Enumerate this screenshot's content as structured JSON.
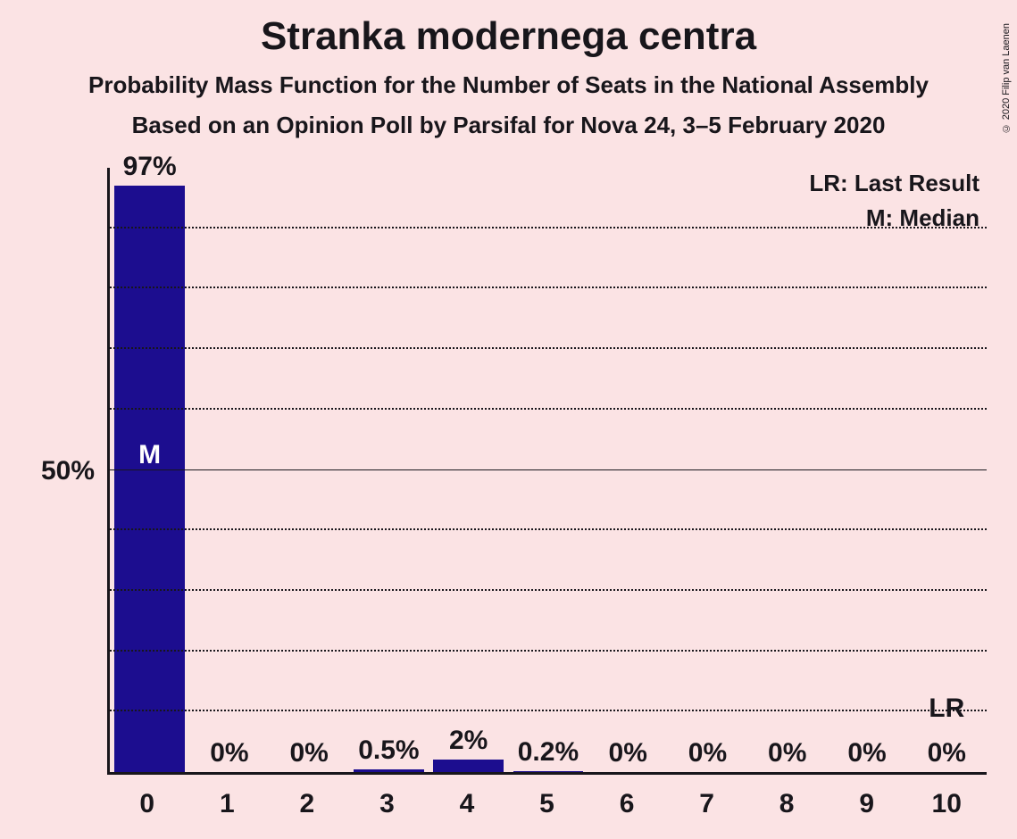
{
  "titles": {
    "main": "Stranka modernega centra",
    "sub1": "Probability Mass Function for the Number of Seats in the National Assembly",
    "sub2": "Based on an Opinion Poll by Parsifal for Nova 24, 3–5 February 2020"
  },
  "copyright": "© 2020 Filip van Laenen",
  "legend": {
    "lr": "LR: Last Result",
    "m": "M: Median"
  },
  "chart": {
    "type": "bar",
    "background_color": "#fbe3e4",
    "bar_color": "#1c0d8f",
    "text_color": "#18161b",
    "axis_color": "#18161b",
    "grid_color": "#18161b",
    "marker_text_color": "#ffffff",
    "y_max_percent": 100,
    "y_gridlines_percent": [
      10,
      20,
      30,
      40,
      50,
      60,
      70,
      80,
      90
    ],
    "y_major_gridline_percent": 50,
    "y_tick_labels": [
      {
        "value": 50,
        "label": "50%"
      }
    ],
    "bars": [
      {
        "x": "0",
        "value": 97,
        "label": "97%",
        "marker": "M",
        "marker_y_percent": 50
      },
      {
        "x": "1",
        "value": 0,
        "label": "0%"
      },
      {
        "x": "2",
        "value": 0,
        "label": "0%"
      },
      {
        "x": "3",
        "value": 0.5,
        "label": "0.5%"
      },
      {
        "x": "4",
        "value": 2,
        "label": "2%"
      },
      {
        "x": "5",
        "value": 0.2,
        "label": "0.2%"
      },
      {
        "x": "6",
        "value": 0,
        "label": "0%"
      },
      {
        "x": "7",
        "value": 0,
        "label": "0%"
      },
      {
        "x": "8",
        "value": 0,
        "label": "0%"
      },
      {
        "x": "9",
        "value": 0,
        "label": "0%"
      },
      {
        "x": "10",
        "value": 0,
        "label": "0%",
        "marker": "LR",
        "marker_y_percent": 8,
        "marker_color": "dark"
      }
    ],
    "title_fontsize": 44,
    "subtitle_fontsize": 26,
    "axis_label_fontsize": 30,
    "bar_label_fontsize": 30,
    "legend_fontsize": 26
  }
}
